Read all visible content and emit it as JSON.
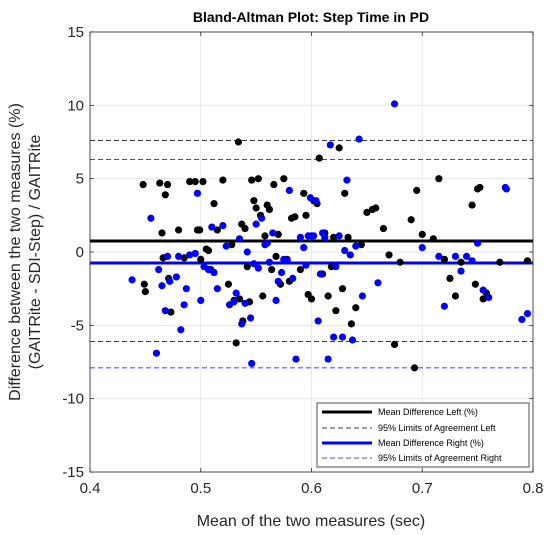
{
  "chart_data": {
    "type": "scatter",
    "title": "Bland-Altman Plot: Step Time in PD",
    "xlabel": "Mean of the two measures (sec)",
    "ylabel_lines": [
      "Difference between the two measures (%)",
      "(GAITRite - SDI-Step) / GAITRite"
    ],
    "xlim": [
      0.4,
      0.8
    ],
    "ylim": [
      -15,
      15
    ],
    "xticks": [
      0.4,
      0.5,
      0.6,
      0.7,
      0.8
    ],
    "xtick_labels": [
      "0.4",
      "0.5",
      "0.6",
      "0.7",
      "0.8"
    ],
    "yticks": [
      -15,
      -10,
      -5,
      0,
      5,
      10,
      15
    ],
    "ytick_labels": [
      "-15",
      "-10",
      "-5",
      "0",
      "5",
      "10",
      "15"
    ],
    "grid": true,
    "legend_position": "bottom-right",
    "series": [
      {
        "name": "Left",
        "color": "#000000",
        "points": [
          [
            0.448,
            4.6
          ],
          [
            0.449,
            -2.2
          ],
          [
            0.45,
            -2.7
          ],
          [
            0.463,
            4.7
          ],
          [
            0.465,
            1.3
          ],
          [
            0.466,
            -0.4
          ],
          [
            0.468,
            3.9
          ],
          [
            0.47,
            4.6
          ],
          [
            0.471,
            -1.8
          ],
          [
            0.473,
            -4.1
          ],
          [
            0.48,
            1.5
          ],
          [
            0.485,
            -0.4
          ],
          [
            0.49,
            4.8
          ],
          [
            0.495,
            4.8
          ],
          [
            0.497,
            1.5
          ],
          [
            0.499,
            1.5
          ],
          [
            0.5,
            -0.5
          ],
          [
            0.502,
            4.8
          ],
          [
            0.505,
            0.2
          ],
          [
            0.507,
            0.1
          ],
          [
            0.509,
            -1.2
          ],
          [
            0.512,
            3.3
          ],
          [
            0.515,
            1.5
          ],
          [
            0.52,
            4.9
          ],
          [
            0.525,
            -2.2
          ],
          [
            0.528,
            0.5
          ],
          [
            0.53,
            -3.3
          ],
          [
            0.532,
            -6.2
          ],
          [
            0.534,
            7.5
          ],
          [
            0.535,
            -3.2
          ],
          [
            0.537,
            1.9
          ],
          [
            0.538,
            -4.7
          ],
          [
            0.54,
            1.6
          ],
          [
            0.542,
            -1.0
          ],
          [
            0.544,
            -3.4
          ],
          [
            0.546,
            4.9
          ],
          [
            0.548,
            3.5
          ],
          [
            0.55,
            3.0
          ],
          [
            0.552,
            5.0
          ],
          [
            0.554,
            2.5
          ],
          [
            0.556,
            -3.0
          ],
          [
            0.558,
            1.1
          ],
          [
            0.56,
            3.2
          ],
          [
            0.562,
            2.9
          ],
          [
            0.564,
            -1.2
          ],
          [
            0.566,
            4.6
          ],
          [
            0.568,
            -0.3
          ],
          [
            0.57,
            1.2
          ],
          [
            0.572,
            -2.2
          ],
          [
            0.575,
            5.0
          ],
          [
            0.578,
            -0.5
          ],
          [
            0.58,
            -2.0
          ],
          [
            0.582,
            2.3
          ],
          [
            0.585,
            2.4
          ],
          [
            0.59,
            -1.2
          ],
          [
            0.593,
            4.0
          ],
          [
            0.595,
            2.5
          ],
          [
            0.597,
            -2.9
          ],
          [
            0.6,
            -3.2
          ],
          [
            0.602,
            3.5
          ],
          [
            0.605,
            3.3
          ],
          [
            0.607,
            6.4
          ],
          [
            0.61,
            -1.5
          ],
          [
            0.612,
            1.3
          ],
          [
            0.615,
            -3.0
          ],
          [
            0.618,
            -1.0
          ],
          [
            0.62,
            1.0
          ],
          [
            0.622,
            -4.0
          ],
          [
            0.625,
            7.1
          ],
          [
            0.628,
            -2.5
          ],
          [
            0.63,
            4.0
          ],
          [
            0.633,
            1.0
          ],
          [
            0.636,
            -4.9
          ],
          [
            0.64,
            -3.8
          ],
          [
            0.645,
            0.5
          ],
          [
            0.65,
            2.7
          ],
          [
            0.655,
            2.9
          ],
          [
            0.658,
            3.0
          ],
          [
            0.665,
            1.6
          ],
          [
            0.67,
            -0.2
          ],
          [
            0.675,
            -6.3
          ],
          [
            0.68,
            -0.7
          ],
          [
            0.69,
            2.2
          ],
          [
            0.693,
            -7.9
          ],
          [
            0.695,
            4.2
          ],
          [
            0.7,
            1.2
          ],
          [
            0.71,
            0.9
          ],
          [
            0.715,
            5.0
          ],
          [
            0.72,
            -0.5
          ],
          [
            0.725,
            -1.8
          ],
          [
            0.73,
            -3.0
          ],
          [
            0.735,
            -0.7
          ],
          [
            0.745,
            3.2
          ],
          [
            0.748,
            -2.2
          ],
          [
            0.75,
            4.3
          ],
          [
            0.752,
            4.4
          ],
          [
            0.755,
            -3.2
          ],
          [
            0.758,
            -2.8
          ],
          [
            0.77,
            -0.7
          ],
          [
            0.795,
            -0.6
          ]
        ]
      },
      {
        "name": "Right",
        "color": "#0000ff",
        "points": [
          [
            0.438,
            -1.9
          ],
          [
            0.455,
            2.3
          ],
          [
            0.46,
            -6.9
          ],
          [
            0.462,
            -1.2
          ],
          [
            0.465,
            -2.3
          ],
          [
            0.468,
            -4.0
          ],
          [
            0.47,
            -0.3
          ],
          [
            0.472,
            -2.0
          ],
          [
            0.478,
            -1.7
          ],
          [
            0.48,
            -0.3
          ],
          [
            0.482,
            -5.3
          ],
          [
            0.485,
            -3.6
          ],
          [
            0.487,
            -2.5
          ],
          [
            0.49,
            -0.2
          ],
          [
            0.495,
            -0.1
          ],
          [
            0.497,
            4.0
          ],
          [
            0.5,
            -3.3
          ],
          [
            0.503,
            -1.0
          ],
          [
            0.507,
            -1.2
          ],
          [
            0.51,
            1.7
          ],
          [
            0.512,
            -1.4
          ],
          [
            0.515,
            -2.5
          ],
          [
            0.52,
            1.8
          ],
          [
            0.523,
            0.4
          ],
          [
            0.526,
            -3.6
          ],
          [
            0.53,
            -3.4
          ],
          [
            0.532,
            -2.8
          ],
          [
            0.535,
            0.9
          ],
          [
            0.537,
            -4.9
          ],
          [
            0.54,
            -3.5
          ],
          [
            0.542,
            0.0
          ],
          [
            0.545,
            -4.5
          ],
          [
            0.546,
            -7.6
          ],
          [
            0.548,
            -0.8
          ],
          [
            0.55,
            1.9
          ],
          [
            0.552,
            -1.1
          ],
          [
            0.555,
            2.3
          ],
          [
            0.558,
            0.5
          ],
          [
            0.56,
            0.6
          ],
          [
            0.562,
            -0.7
          ],
          [
            0.565,
            1.3
          ],
          [
            0.568,
            -3.3
          ],
          [
            0.57,
            -2.0
          ],
          [
            0.573,
            -1.4
          ],
          [
            0.575,
            -0.5
          ],
          [
            0.578,
            -0.6
          ],
          [
            0.58,
            4.2
          ],
          [
            0.583,
            -1.8
          ],
          [
            0.586,
            -7.3
          ],
          [
            0.59,
            1.0
          ],
          [
            0.593,
            0.3
          ],
          [
            0.595,
            -0.9
          ],
          [
            0.597,
            1.1
          ],
          [
            0.599,
            3.7
          ],
          [
            0.6,
            1.1
          ],
          [
            0.602,
            1.1
          ],
          [
            0.604,
            3.5
          ],
          [
            0.606,
            -4.7
          ],
          [
            0.608,
            -1.5
          ],
          [
            0.61,
            1.3
          ],
          [
            0.612,
            1.0
          ],
          [
            0.615,
            -7.3
          ],
          [
            0.617,
            7.3
          ],
          [
            0.62,
            -5.8
          ],
          [
            0.622,
            -1.0
          ],
          [
            0.625,
            1.1
          ],
          [
            0.628,
            -5.8
          ],
          [
            0.63,
            0.1
          ],
          [
            0.632,
            4.9
          ],
          [
            0.635,
            -0.2
          ],
          [
            0.637,
            -6.0
          ],
          [
            0.64,
            0.4
          ],
          [
            0.643,
            7.7
          ],
          [
            0.646,
            -3.0
          ],
          [
            0.66,
            -2.1
          ],
          [
            0.675,
            10.1
          ],
          [
            0.7,
            0.3
          ],
          [
            0.715,
            -0.3
          ],
          [
            0.72,
            -3.7
          ],
          [
            0.73,
            -0.3
          ],
          [
            0.735,
            -1.3
          ],
          [
            0.74,
            -0.3
          ],
          [
            0.745,
            -0.6
          ],
          [
            0.75,
            0.6
          ],
          [
            0.755,
            -2.6
          ],
          [
            0.76,
            -3.1
          ],
          [
            0.775,
            4.4
          ],
          [
            0.776,
            4.3
          ],
          [
            0.79,
            -4.6
          ],
          [
            0.795,
            -4.2
          ]
        ]
      }
    ],
    "reference_lines": [
      {
        "name": "Mean Difference Left (%)",
        "y": 0.75,
        "color": "#000000",
        "style": "solid"
      },
      {
        "name": "95% Limits of Agreement Left",
        "y": 7.6,
        "color": "#000000",
        "style": "dashed"
      },
      {
        "name": "95% Limits of Agreement Left",
        "y": -6.1,
        "color": "#000000",
        "style": "dashed"
      },
      {
        "name": "Mean Difference Right (%)",
        "y": -0.75,
        "color": "#0000ff",
        "style": "solid"
      },
      {
        "name": "95% Limits of Agreement Right",
        "y": 6.3,
        "color": "#0000ff",
        "style": "dashed"
      },
      {
        "name": "95% Limits of Agreement Right",
        "y": -7.9,
        "color": "#0000ff",
        "style": "dashed"
      }
    ],
    "legend": [
      {
        "label": "Mean Difference Left (%)",
        "color": "#000000",
        "style": "solid"
      },
      {
        "label": "95% Limits of Agreement Left",
        "color": "#000000",
        "style": "dashed"
      },
      {
        "label": "Mean Difference Right (%)",
        "color": "#0000ff",
        "style": "solid"
      },
      {
        "label": "95% Limits of Agreement Right",
        "color": "#0000ff",
        "style": "dashed"
      }
    ]
  }
}
